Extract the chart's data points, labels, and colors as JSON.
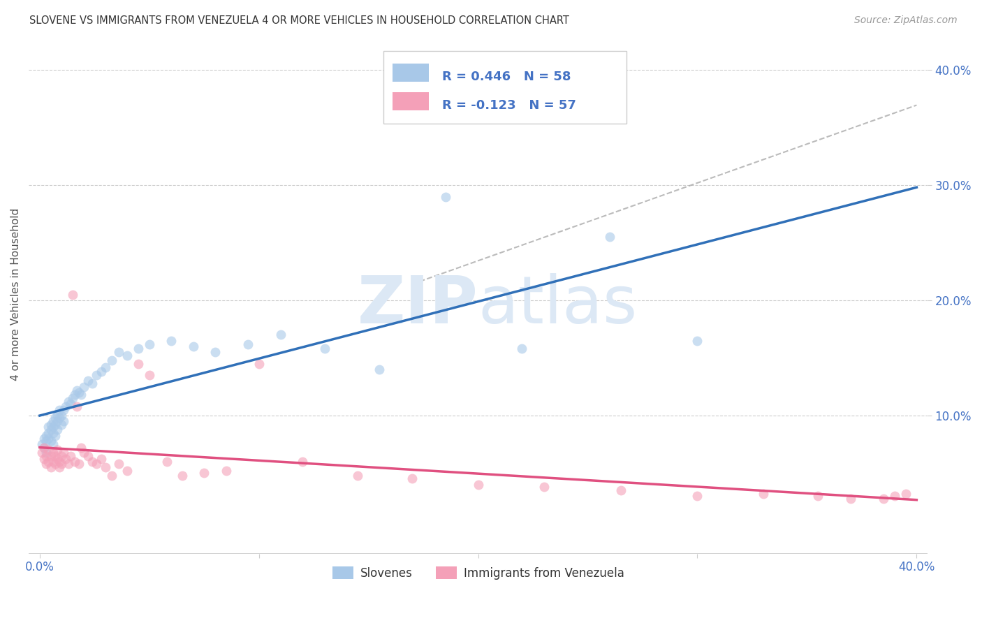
{
  "title": "SLOVENE VS IMMIGRANTS FROM VENEZUELA 4 OR MORE VEHICLES IN HOUSEHOLD CORRELATION CHART",
  "source": "Source: ZipAtlas.com",
  "ylabel": "4 or more Vehicles in Household",
  "legend_label1": "Slovenes",
  "legend_label2": "Immigrants from Venezuela",
  "R1": 0.446,
  "N1": 58,
  "R2": -0.123,
  "N2": 57,
  "color_blue": "#a8c8e8",
  "color_pink": "#f4a0b8",
  "line_blue": "#3070b8",
  "line_pink": "#e05080",
  "watermark_color": "#dce8f5",
  "xlim": [
    0.0,
    0.4
  ],
  "ylim": [
    -0.02,
    0.43
  ],
  "blue_x": [
    0.001,
    0.002,
    0.002,
    0.003,
    0.003,
    0.003,
    0.004,
    0.004,
    0.004,
    0.005,
    0.005,
    0.005,
    0.006,
    0.006,
    0.006,
    0.006,
    0.007,
    0.007,
    0.007,
    0.008,
    0.008,
    0.008,
    0.009,
    0.009,
    0.01,
    0.01,
    0.011,
    0.011,
    0.012,
    0.013,
    0.014,
    0.015,
    0.016,
    0.017,
    0.018,
    0.019,
    0.02,
    0.022,
    0.024,
    0.026,
    0.028,
    0.03,
    0.033,
    0.036,
    0.04,
    0.045,
    0.05,
    0.06,
    0.07,
    0.08,
    0.095,
    0.11,
    0.13,
    0.155,
    0.185,
    0.22,
    0.26,
    0.3
  ],
  "blue_y": [
    0.075,
    0.08,
    0.072,
    0.082,
    0.078,
    0.068,
    0.085,
    0.09,
    0.08,
    0.088,
    0.092,
    0.078,
    0.09,
    0.095,
    0.085,
    0.075,
    0.092,
    0.098,
    0.082,
    0.1,
    0.088,
    0.095,
    0.098,
    0.105,
    0.092,
    0.1,
    0.105,
    0.095,
    0.108,
    0.112,
    0.11,
    0.115,
    0.118,
    0.122,
    0.12,
    0.118,
    0.125,
    0.13,
    0.128,
    0.135,
    0.138,
    0.142,
    0.148,
    0.155,
    0.152,
    0.158,
    0.162,
    0.165,
    0.16,
    0.155,
    0.162,
    0.17,
    0.158,
    0.14,
    0.29,
    0.158,
    0.255,
    0.165
  ],
  "pink_x": [
    0.001,
    0.002,
    0.002,
    0.003,
    0.003,
    0.004,
    0.004,
    0.005,
    0.005,
    0.006,
    0.006,
    0.007,
    0.007,
    0.008,
    0.008,
    0.009,
    0.009,
    0.01,
    0.01,
    0.011,
    0.012,
    0.013,
    0.014,
    0.015,
    0.016,
    0.017,
    0.018,
    0.019,
    0.02,
    0.022,
    0.024,
    0.026,
    0.028,
    0.03,
    0.033,
    0.036,
    0.04,
    0.045,
    0.05,
    0.058,
    0.065,
    0.075,
    0.085,
    0.1,
    0.12,
    0.145,
    0.17,
    0.2,
    0.23,
    0.265,
    0.3,
    0.33,
    0.355,
    0.37,
    0.385,
    0.39,
    0.395
  ],
  "pink_y": [
    0.068,
    0.072,
    0.062,
    0.065,
    0.058,
    0.07,
    0.06,
    0.065,
    0.055,
    0.068,
    0.06,
    0.065,
    0.058,
    0.07,
    0.062,
    0.06,
    0.055,
    0.065,
    0.058,
    0.068,
    0.062,
    0.058,
    0.065,
    0.205,
    0.06,
    0.108,
    0.058,
    0.072,
    0.068,
    0.065,
    0.06,
    0.058,
    0.062,
    0.055,
    0.048,
    0.058,
    0.052,
    0.145,
    0.135,
    0.06,
    0.048,
    0.05,
    0.052,
    0.145,
    0.06,
    0.048,
    0.045,
    0.04,
    0.038,
    0.035,
    0.03,
    0.032,
    0.03,
    0.028,
    0.028,
    0.03,
    0.032
  ]
}
